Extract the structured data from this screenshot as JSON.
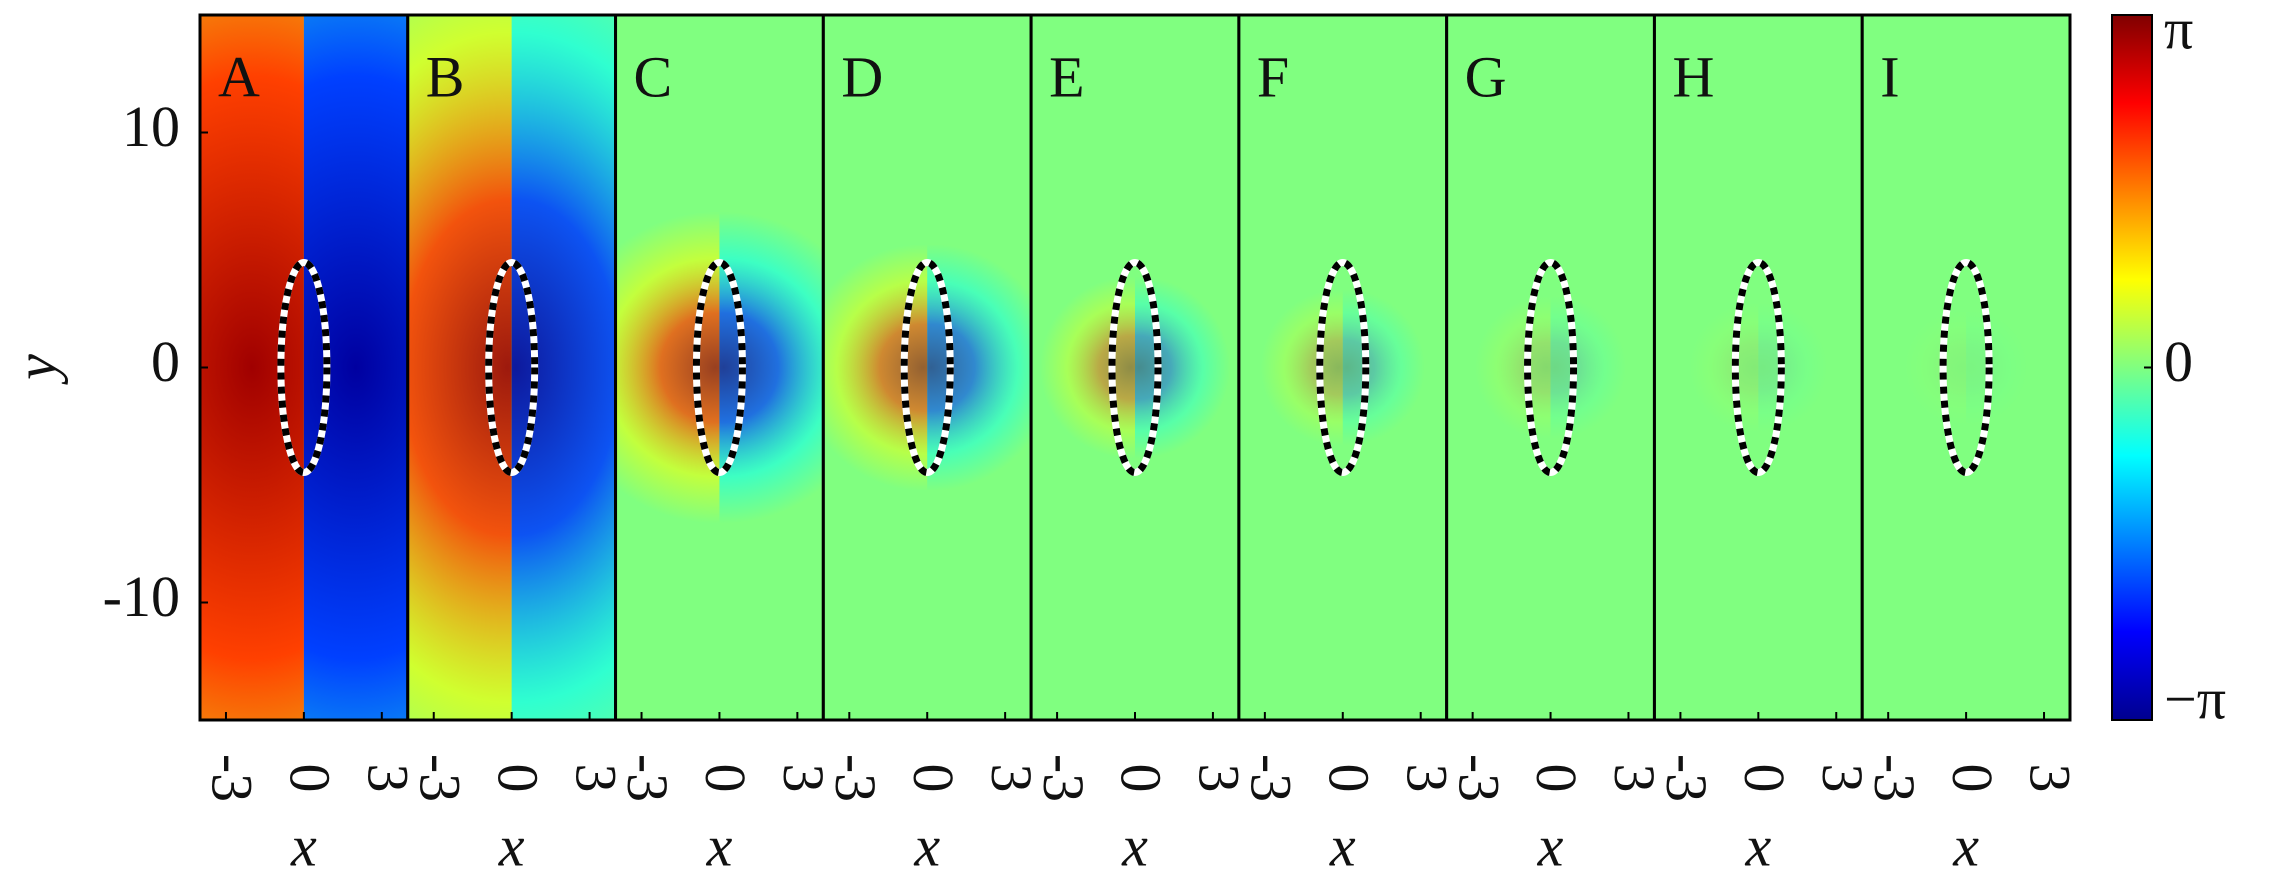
{
  "chart_data": {
    "type": "heatmap",
    "panels": [
      "A",
      "B",
      "C",
      "D",
      "E",
      "F",
      "G",
      "H",
      "I"
    ],
    "xlabel": "x",
    "ylabel": "y",
    "xlim": [
      -4,
      4
    ],
    "xticks": [
      -3,
      0,
      3
    ],
    "ylim": [
      -15,
      15
    ],
    "yticks": [
      -10,
      0,
      10
    ],
    "clim": [
      -3.14159,
      3.14159
    ],
    "colorbar_ticks": [
      {
        "value": 3.14159,
        "label": "π"
      },
      0,
      {
        "value": -3.14159,
        "label": "−π"
      }
    ],
    "colormap": "jet"
  }
}
